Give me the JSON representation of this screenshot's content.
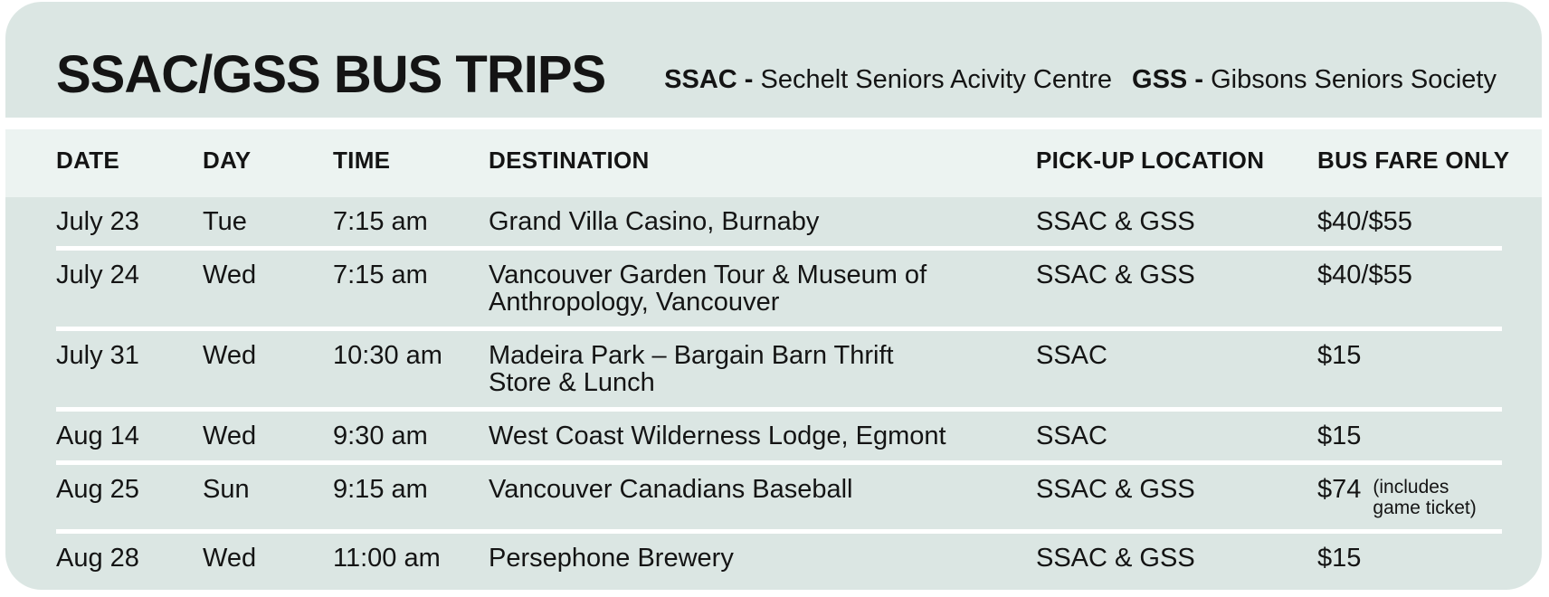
{
  "colors": {
    "card_background": "#dbe6e3",
    "header_band_background": "#ecf3f1",
    "separator": "#ffffff",
    "text": "#141414",
    "page_background": "#ffffff"
  },
  "title": "SSAC/GSS BUS TRIPS",
  "legend": {
    "ssac_label": "SSAC -",
    "ssac_text": "Sechelt Seniors Acivity Centre",
    "gss_label": "GSS -",
    "gss_text": "Gibsons Seniors Society"
  },
  "table": {
    "columns": [
      "DATE",
      "DAY",
      "TIME",
      "DESTINATION",
      "PICK-UP LOCATION",
      "BUS FARE ONLY"
    ],
    "rows": [
      {
        "date": "July 23",
        "day": "Tue",
        "time": "7:15 am",
        "destination": "Grand Villa Casino, Burnaby",
        "pickup": "SSAC & GSS",
        "fare": "$40/$55",
        "fare_note": ""
      },
      {
        "date": "July 24",
        "day": "Wed",
        "time": "7:15 am",
        "destination": "Vancouver Garden Tour & Museum of\nAnthropology, Vancouver",
        "pickup": "SSAC & GSS",
        "fare": "$40/$55",
        "fare_note": ""
      },
      {
        "date": "July 31",
        "day": "Wed",
        "time": "10:30 am",
        "destination": "Madeira Park – Bargain Barn Thrift\nStore & Lunch",
        "pickup": "SSAC",
        "fare": "$15",
        "fare_note": ""
      },
      {
        "date": "Aug 14",
        "day": "Wed",
        "time": "9:30 am",
        "destination": "West Coast Wilderness Lodge, Egmont",
        "pickup": "SSAC",
        "fare": "$15",
        "fare_note": ""
      },
      {
        "date": "Aug 25",
        "day": "Sun",
        "time": "9:15 am",
        "destination": "Vancouver Canadians Baseball",
        "pickup": "SSAC & GSS",
        "fare": "$74",
        "fare_note": "(includes\ngame ticket)"
      },
      {
        "date": "Aug 28",
        "day": "Wed",
        "time": "11:00 am",
        "destination": "Persephone Brewery",
        "pickup": "SSAC & GSS",
        "fare": "$15",
        "fare_note": ""
      }
    ]
  }
}
